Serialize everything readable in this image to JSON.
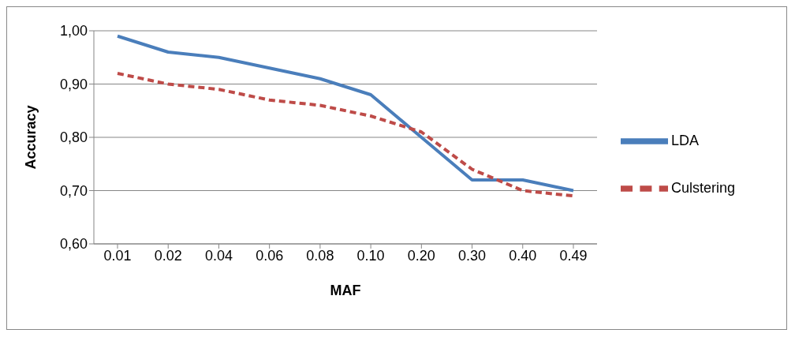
{
  "chart_data": {
    "type": "line",
    "xlabel": "MAF",
    "ylabel": "Accuracy",
    "categories": [
      "0.01",
      "0.02",
      "0.04",
      "0.06",
      "0.08",
      "0.10",
      "0.20",
      "0.30",
      "0.40",
      "0.49"
    ],
    "series": [
      {
        "name": "LDA",
        "color": "#4a7ebb",
        "line_style": "solid",
        "values": [
          0.99,
          0.96,
          0.95,
          0.93,
          0.91,
          0.88,
          0.8,
          0.72,
          0.72,
          0.7
        ]
      },
      {
        "name": "Culstering",
        "color": "#be4b48",
        "line_style": "dashed",
        "values": [
          0.92,
          0.9,
          0.89,
          0.87,
          0.86,
          0.84,
          0.81,
          0.74,
          0.7,
          0.69
        ]
      }
    ],
    "ylim": [
      0.6,
      1.0
    ],
    "yticks": [
      {
        "value": 0.6,
        "label": "0,60"
      },
      {
        "value": 0.7,
        "label": "0,70"
      },
      {
        "value": 0.8,
        "label": "0,80"
      },
      {
        "value": 0.9,
        "label": "0,90"
      },
      {
        "value": 1.0,
        "label": "1,00"
      }
    ],
    "grid": "y",
    "legend": "right",
    "marker": "none"
  }
}
